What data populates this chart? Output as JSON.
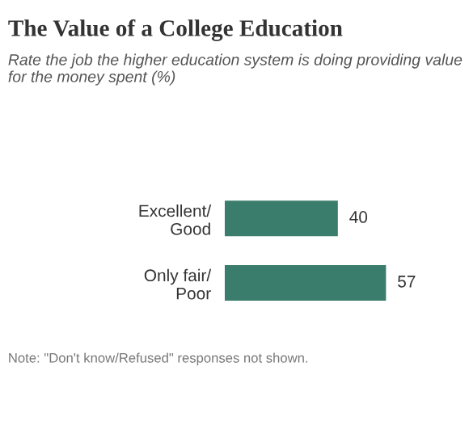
{
  "chart_data": {
    "type": "bar",
    "orientation": "horizontal",
    "title": "The Value of a College Education",
    "subtitle": "Rate the job the higher education system is doing providing value for the money spent (%)",
    "categories": [
      "Excellent/\nGood",
      "Only fair/\nPoor"
    ],
    "values": [
      40,
      57
    ],
    "color": "#3b7d6c",
    "data_labels": true,
    "grid": false,
    "legend": false,
    "annotations": [
      "Note: \"Don't know/Refused\" responses not shown."
    ]
  }
}
